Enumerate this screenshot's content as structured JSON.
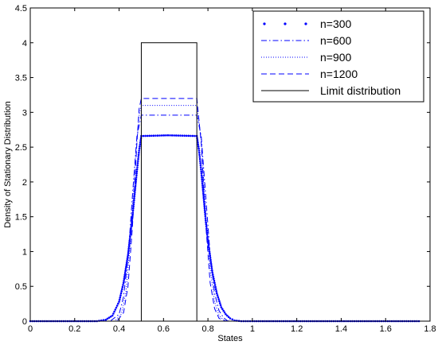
{
  "chart_data": {
    "type": "line",
    "title": "",
    "xlabel": "States",
    "ylabel": "Density of Stationary Distribution",
    "xlim": [
      0,
      1.8
    ],
    "ylim": [
      0,
      4.5
    ],
    "xticks": [
      "0",
      "0.2",
      "0.4",
      "0.6",
      "0.8",
      "1",
      "1.2",
      "1.4",
      "1.6",
      "1.8"
    ],
    "yticks": [
      "0",
      "0.5",
      "1",
      "1.5",
      "2",
      "2.5",
      "3",
      "3.5",
      "4",
      "4.5"
    ],
    "grid": false,
    "legend_position": "top-right",
    "series": [
      {
        "name": "n=300",
        "style": "dotted-markers",
        "color": "#0000ff",
        "x": [
          0.0,
          0.3,
          0.34,
          0.37,
          0.4,
          0.42,
          0.44,
          0.46,
          0.48,
          0.49,
          0.5,
          0.62,
          0.75,
          0.76,
          0.77,
          0.78,
          0.79,
          0.8,
          0.82,
          0.84,
          0.86,
          0.88,
          0.9,
          0.92,
          0.95,
          1.0,
          1.75
        ],
        "y": [
          0.0,
          0.0,
          0.02,
          0.08,
          0.28,
          0.55,
          0.95,
          1.5,
          2.15,
          2.45,
          2.66,
          2.67,
          2.66,
          2.45,
          2.15,
          1.8,
          1.45,
          1.15,
          0.7,
          0.4,
          0.2,
          0.1,
          0.04,
          0.01,
          0.0,
          0.0,
          0.0
        ]
      },
      {
        "name": "n=600",
        "style": "dash-dot",
        "color": "#0000ff",
        "x": [
          0.0,
          0.36,
          0.4,
          0.42,
          0.44,
          0.46,
          0.48,
          0.5,
          0.62,
          0.75,
          0.77,
          0.79,
          0.81,
          0.83,
          0.85,
          0.87,
          0.89,
          0.92,
          1.75
        ],
        "y": [
          0.0,
          0.0,
          0.1,
          0.35,
          0.9,
          1.8,
          2.65,
          2.96,
          2.96,
          2.96,
          2.65,
          1.8,
          0.95,
          0.4,
          0.15,
          0.05,
          0.0,
          0.0,
          0.0
        ]
      },
      {
        "name": "n=900",
        "style": "dotted",
        "color": "#0000ff",
        "x": [
          0.0,
          0.38,
          0.41,
          0.43,
          0.45,
          0.47,
          0.49,
          0.5,
          0.62,
          0.75,
          0.77,
          0.79,
          0.81,
          0.83,
          0.85,
          0.87,
          0.9,
          1.75
        ],
        "y": [
          0.0,
          0.0,
          0.1,
          0.4,
          1.1,
          2.2,
          2.95,
          3.1,
          3.1,
          3.1,
          2.6,
          1.55,
          0.75,
          0.28,
          0.08,
          0.02,
          0.0,
          0.0
        ]
      },
      {
        "name": "n=1200",
        "style": "dashed",
        "color": "#0000ff",
        "x": [
          0.0,
          0.39,
          0.42,
          0.44,
          0.46,
          0.48,
          0.49,
          0.5,
          0.62,
          0.75,
          0.77,
          0.79,
          0.81,
          0.83,
          0.85,
          0.88,
          1.75
        ],
        "y": [
          0.0,
          0.0,
          0.12,
          0.5,
          1.35,
          2.55,
          3.05,
          3.2,
          3.2,
          3.2,
          2.55,
          1.4,
          0.55,
          0.18,
          0.04,
          0.0,
          0.0
        ]
      },
      {
        "name": "Limit distribution",
        "style": "solid",
        "color": "#000000",
        "x": [
          0.0,
          0.5,
          0.5,
          0.75,
          0.75,
          1.75
        ],
        "y": [
          0.0,
          0.0,
          4.0,
          4.0,
          0.0,
          0.0
        ]
      }
    ]
  }
}
